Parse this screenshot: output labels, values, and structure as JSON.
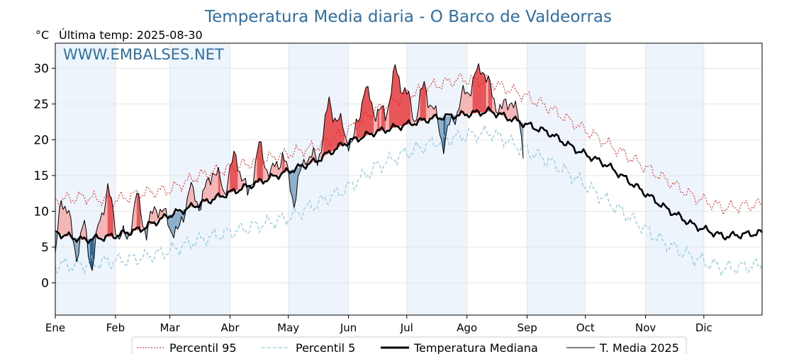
{
  "header": {
    "title": "Temperatura Media diaria - O Barco de Valdeorras",
    "unit": "°C",
    "last_temp": "Última temp: 2025-08-30",
    "watermark": "WWW.EMBALSES.NET"
  },
  "colors": {
    "title": "#2f6fa3",
    "p95": "#e8221c",
    "p5": "#8ec9dd",
    "median": "#000000",
    "current": "#000000",
    "above_light": "#f4b6b6",
    "above_strong": "#e8565a",
    "below_light": "#8fb0cc",
    "below_strong": "#2c6797",
    "month_band": "#eef4fb"
  },
  "chart_data": {
    "type": "line",
    "title": "Temperatura Media diaria - O Barco de Valdeorras",
    "ylabel": "°C",
    "ylim": [
      -4.5,
      33.5
    ],
    "yticks": [
      0,
      5,
      10,
      15,
      20,
      25,
      30
    ],
    "x_months": [
      "Ene",
      "Feb",
      "Mar",
      "Abr",
      "May",
      "Jun",
      "Jul",
      "Ago",
      "Sep",
      "Oct",
      "Nov",
      "Dic"
    ],
    "grid": true,
    "legend_position": "bottom",
    "series": [
      {
        "name": "Percentil 95",
        "x_day": [
          1,
          15,
          30,
          45,
          60,
          75,
          90,
          105,
          120,
          135,
          150,
          165,
          180,
          195,
          210,
          225,
          240,
          255,
          270,
          285,
          300,
          315,
          330,
          345,
          365
        ],
        "values": [
          11.5,
          12.0,
          11.5,
          12.5,
          13.0,
          15.0,
          16.0,
          17.0,
          18.0,
          19.0,
          21.0,
          24.0,
          26.0,
          27.5,
          28.5,
          28.0,
          26.5,
          24.5,
          22.0,
          19.5,
          17.0,
          14.5,
          12.0,
          10.5,
          11.0
        ]
      },
      {
        "name": "Percentil 5",
        "x_day": [
          1,
          15,
          30,
          45,
          60,
          75,
          90,
          105,
          120,
          135,
          150,
          165,
          180,
          195,
          210,
          225,
          240,
          255,
          270,
          285,
          300,
          315,
          330,
          345,
          365
        ],
        "values": [
          2.5,
          2.5,
          3.0,
          3.5,
          4.5,
          6.0,
          7.0,
          8.0,
          9.0,
          11.0,
          13.0,
          16.0,
          18.0,
          19.5,
          20.5,
          21.0,
          19.0,
          17.0,
          14.5,
          11.5,
          8.5,
          5.5,
          3.5,
          2.0,
          2.5
        ]
      },
      {
        "name": "Temperatura Mediana",
        "x_day": [
          1,
          15,
          30,
          45,
          60,
          75,
          90,
          105,
          120,
          135,
          150,
          165,
          180,
          195,
          210,
          225,
          240,
          255,
          270,
          285,
          300,
          315,
          330,
          345,
          365
        ],
        "values": [
          7.0,
          6.0,
          6.5,
          7.5,
          9.5,
          11.0,
          12.5,
          14.0,
          15.5,
          17.0,
          19.5,
          21.0,
          22.0,
          23.0,
          23.5,
          24.0,
          22.5,
          21.0,
          18.5,
          16.5,
          13.5,
          10.5,
          8.0,
          6.5,
          7.0
        ]
      },
      {
        "name": "T. Media 2025",
        "x_day": [
          1,
          4,
          8,
          12,
          16,
          20,
          24,
          28,
          33,
          38,
          43,
          48,
          53,
          58,
          64,
          70,
          76,
          82,
          88,
          94,
          100,
          106,
          112,
          118,
          124,
          130,
          136,
          142,
          148,
          154,
          160,
          166,
          171,
          176,
          181,
          186,
          191,
          196,
          201,
          206,
          211,
          216,
          221,
          226,
          231,
          236,
          240,
          242
        ],
        "values": [
          3.0,
          12.5,
          9.0,
          4.0,
          8.0,
          2.0,
          9.0,
          13.0,
          7.0,
          6.0,
          12.0,
          7.0,
          11.0,
          9.0,
          6.5,
          13.0,
          11.0,
          16.0,
          13.0,
          18.0,
          12.0,
          19.0,
          15.0,
          18.0,
          11.5,
          18.0,
          17.0,
          25.0,
          22.0,
          19.0,
          27.0,
          24.0,
          23.5,
          29.5,
          27.0,
          23.0,
          27.5,
          24.0,
          19.5,
          23.0,
          26.0,
          28.0,
          30.5,
          26.0,
          24.0,
          26.0,
          22.0,
          19.0
        ]
      }
    ]
  },
  "legend": {
    "items": [
      "Percentil 95",
      "Percentil 5",
      "Temperatura Mediana",
      "T. Media 2025"
    ]
  }
}
